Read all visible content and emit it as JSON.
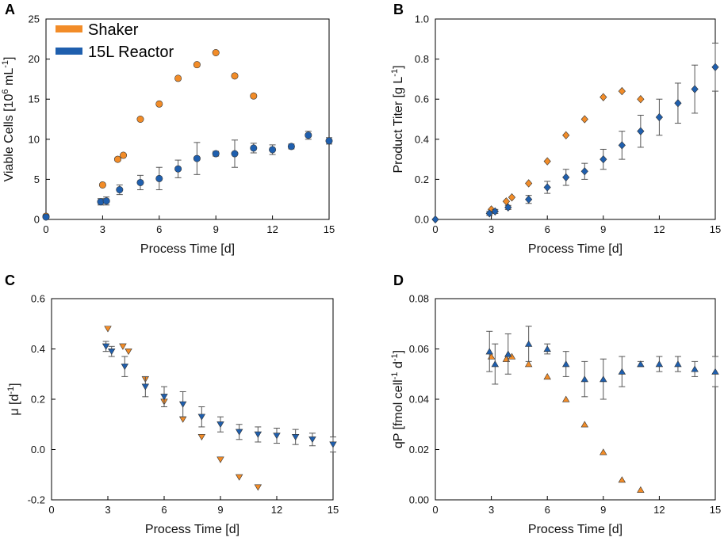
{
  "colors": {
    "shaker": "#F28C28",
    "reactor": "#1F5FAE",
    "edge": "#333333",
    "errorbar": "#555555"
  },
  "legend": {
    "shaker": "Shaker",
    "reactor": "15L Reactor"
  },
  "chart_data": [
    {
      "panel": "A",
      "type": "scatter",
      "ylabel_text": "Viable Cells [10",
      "ylabel_sup1": "6",
      "ylabel_mid": " mL",
      "ylabel_sup2": "-1",
      "ylabel_end": "]",
      "xlabel": "Process Time [d]",
      "xlim": [
        0,
        15
      ],
      "ylim": [
        0,
        25
      ],
      "xticks": [
        0,
        3,
        6,
        9,
        12,
        15
      ],
      "yticks": [
        0,
        5,
        10,
        15,
        20,
        25
      ],
      "marker": "circle",
      "series": [
        {
          "name": "Shaker",
          "x": [
            0,
            3,
            3.8,
            4.1,
            5,
            6,
            7,
            8,
            9,
            10,
            11
          ],
          "y": [
            0.4,
            4.3,
            7.5,
            8.0,
            12.5,
            14.4,
            17.6,
            19.3,
            20.8,
            17.9,
            15.4
          ]
        },
        {
          "name": "15L Reactor",
          "x": [
            0,
            2.9,
            3.2,
            3.9,
            5,
            6,
            7,
            8,
            9,
            10,
            11,
            12,
            13,
            13.9,
            15
          ],
          "y": [
            0.3,
            2.2,
            2.3,
            3.7,
            4.6,
            5.1,
            6.3,
            7.6,
            8.2,
            8.2,
            8.9,
            8.7,
            9.1,
            10.5,
            9.8
          ],
          "err": [
            0.1,
            0.4,
            0.5,
            0.6,
            0.9,
            1.4,
            1.1,
            2.0,
            0.3,
            1.7,
            0.6,
            0.6,
            0.3,
            0.5,
            0.4
          ]
        }
      ]
    },
    {
      "panel": "B",
      "type": "scatter",
      "ylabel_text": "Product Titer [g L",
      "ylabel_sup1": "-1",
      "ylabel_mid": "",
      "ylabel_sup2": "",
      "ylabel_end": "]",
      "xlabel": "Process Time [d]",
      "xlim": [
        0,
        15
      ],
      "ylim": [
        0,
        1
      ],
      "xticks": [
        0,
        3,
        6,
        9,
        12,
        15
      ],
      "yticks": [
        "0.0",
        "0.2",
        "0.4",
        "0.6",
        "0.8",
        "1.0"
      ],
      "marker": "diamond",
      "series": [
        {
          "name": "Shaker",
          "x": [
            3,
            3.8,
            4.1,
            5,
            6,
            7,
            8,
            9,
            10,
            11
          ],
          "y": [
            0.05,
            0.09,
            0.11,
            0.18,
            0.29,
            0.42,
            0.5,
            0.61,
            0.64,
            0.6
          ]
        },
        {
          "name": "15L Reactor",
          "x": [
            0,
            2.9,
            3.2,
            3.9,
            5,
            6,
            7,
            8,
            9,
            10,
            11,
            12,
            13,
            13.9,
            15
          ],
          "y": [
            0.0,
            0.03,
            0.04,
            0.06,
            0.1,
            0.16,
            0.21,
            0.24,
            0.3,
            0.37,
            0.44,
            0.51,
            0.58,
            0.65,
            0.76
          ],
          "err": [
            0.0,
            0.01,
            0.01,
            0.01,
            0.02,
            0.03,
            0.04,
            0.04,
            0.05,
            0.07,
            0.08,
            0.09,
            0.1,
            0.12,
            0.12
          ]
        }
      ]
    },
    {
      "panel": "C",
      "type": "scatter",
      "ylabel_text": "μ [d",
      "ylabel_sup1": "-1",
      "ylabel_mid": "",
      "ylabel_sup2": "",
      "ylabel_end": "]",
      "xlabel": "Process Time [d]",
      "xlim": [
        0,
        15
      ],
      "ylim": [
        -0.2,
        0.6
      ],
      "xticks": [
        0,
        3,
        6,
        9,
        12,
        15
      ],
      "yticks": [
        "-0.2",
        "0.0",
        "0.2",
        "0.4",
        "0.6"
      ],
      "marker": "triangle-down",
      "series": [
        {
          "name": "Shaker",
          "x": [
            3,
            3.8,
            4.1,
            5,
            6,
            7,
            8,
            9,
            10,
            11
          ],
          "y": [
            0.48,
            0.41,
            0.39,
            0.28,
            0.19,
            0.12,
            0.05,
            -0.04,
            -0.11,
            -0.15
          ]
        },
        {
          "name": "15L Reactor",
          "x": [
            2.9,
            3.2,
            3.9,
            5,
            6,
            7,
            8,
            9,
            10,
            11,
            12,
            13,
            13.9,
            15
          ],
          "y": [
            0.41,
            0.39,
            0.33,
            0.25,
            0.21,
            0.18,
            0.13,
            0.1,
            0.07,
            0.06,
            0.055,
            0.05,
            0.04,
            0.02
          ],
          "err": [
            0.02,
            0.02,
            0.04,
            0.04,
            0.04,
            0.05,
            0.04,
            0.03,
            0.03,
            0.03,
            0.03,
            0.03,
            0.025,
            0.03
          ]
        }
      ]
    },
    {
      "panel": "D",
      "type": "scatter",
      "ylabel_text": "qP [fmol cell",
      "ylabel_sup1": "-1",
      "ylabel_mid": " d",
      "ylabel_sup2": "-1",
      "ylabel_end": "]",
      "xlabel": "Process Time [d]",
      "xlim": [
        0,
        15
      ],
      "ylim": [
        0,
        0.08
      ],
      "xticks": [
        0,
        3,
        6,
        9,
        12,
        15
      ],
      "yticks": [
        "0.00",
        "0.02",
        "0.04",
        "0.06",
        "0.08"
      ],
      "marker": "triangle-up",
      "series": [
        {
          "name": "Shaker",
          "x": [
            3,
            3.8,
            4.1,
            5,
            6,
            7,
            8,
            9,
            10,
            11
          ],
          "y": [
            0.057,
            0.056,
            0.057,
            0.054,
            0.049,
            0.04,
            0.03,
            0.019,
            0.008,
            0.004
          ]
        },
        {
          "name": "15L Reactor",
          "x": [
            2.9,
            3.2,
            3.9,
            5,
            6,
            7,
            8,
            9,
            10,
            11,
            12,
            13,
            13.9,
            15
          ],
          "y": [
            0.059,
            0.054,
            0.058,
            0.062,
            0.06,
            0.054,
            0.048,
            0.048,
            0.051,
            0.054,
            0.054,
            0.054,
            0.052,
            0.051
          ],
          "err": [
            0.008,
            0.008,
            0.008,
            0.007,
            0.002,
            0.005,
            0.007,
            0.008,
            0.006,
            0.001,
            0.003,
            0.003,
            0.003,
            0.006
          ]
        }
      ]
    }
  ]
}
